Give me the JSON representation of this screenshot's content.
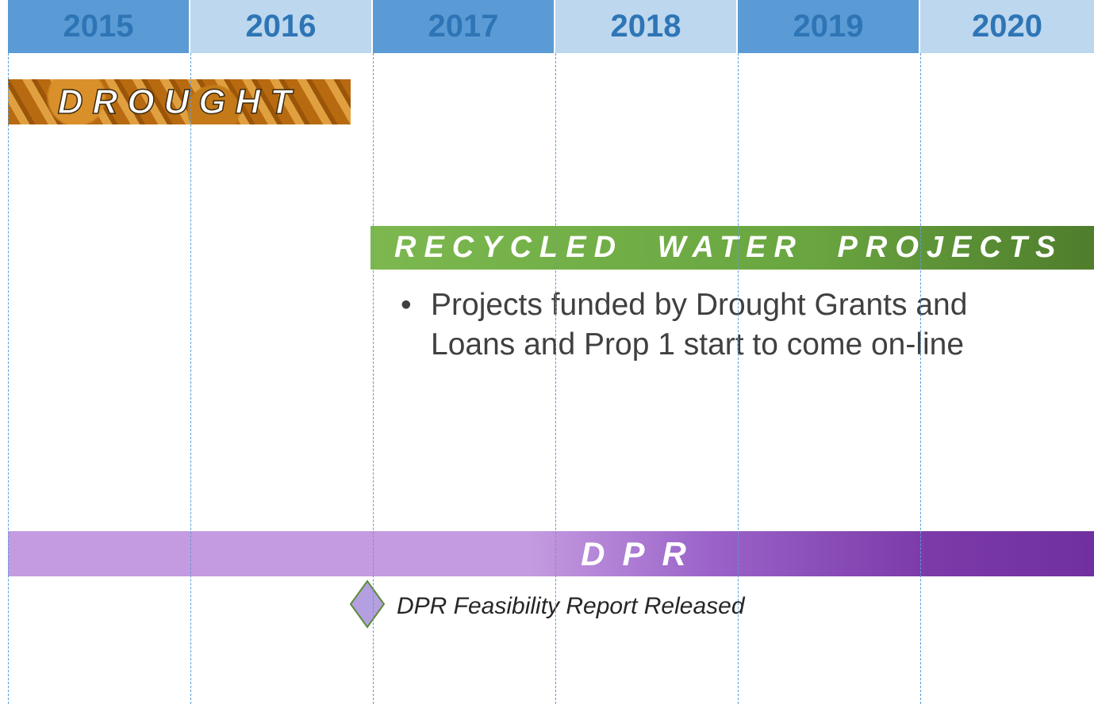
{
  "timeline": {
    "years": [
      "2015",
      "2016",
      "2017",
      "2018",
      "2019",
      "2020"
    ]
  },
  "drought": {
    "label": "DROUGHT"
  },
  "recycled_water": {
    "label": "RECYCLED WATER PROJECTS",
    "bullets": [
      "Projects funded by Drought Grants and Loans and Prop 1 start to come on-line"
    ]
  },
  "dpr": {
    "label": "DPR",
    "milestone": "DPR Feasibility Report Released"
  }
}
